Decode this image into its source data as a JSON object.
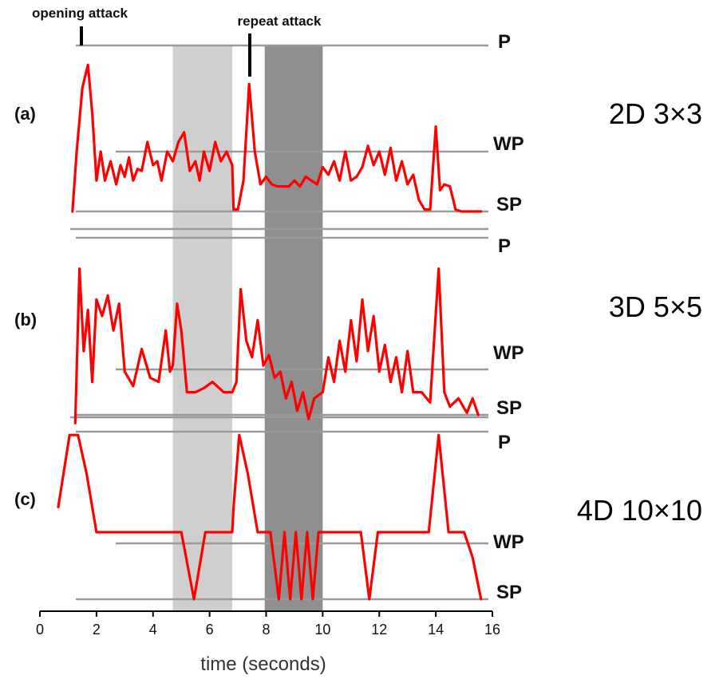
{
  "chart_data": {
    "type": "line",
    "xlabel": "time (seconds)",
    "xlim": [
      0,
      16
    ],
    "xticks": [
      0,
      2,
      4,
      6,
      8,
      10,
      12,
      14,
      16
    ],
    "annotations": [
      {
        "text": "opening attack",
        "x": 1.9
      },
      {
        "text": "repeat attack",
        "x": 7.6
      }
    ],
    "shaded_regions": [
      {
        "x0": 4.7,
        "x1": 6.8,
        "color": "#cfcfcf"
      },
      {
        "x0": 7.95,
        "x1": 10.0,
        "color": "#8f8f8f"
      }
    ],
    "level_labels": [
      "P",
      "WP",
      "SP"
    ],
    "line_color": "#ff0000",
    "panels": [
      {
        "label": "(a)",
        "side_label": "2D 3×3",
        "levels": {
          "P": 1.0,
          "WP": 0.5,
          "SP": 0.14
        },
        "x": [
          1.15,
          1.3,
          1.5,
          1.7,
          1.85,
          2.0,
          2.15,
          2.3,
          2.5,
          2.7,
          2.85,
          3.0,
          3.15,
          3.3,
          3.45,
          3.6,
          3.8,
          4.0,
          4.15,
          4.3,
          4.5,
          4.7,
          4.9,
          5.1,
          5.3,
          5.5,
          5.65,
          5.8,
          6.0,
          6.2,
          6.4,
          6.6,
          6.8,
          6.85,
          7.0,
          7.2,
          7.4,
          7.6,
          7.8,
          8.0,
          8.2,
          8.4,
          8.6,
          8.8,
          9.0,
          9.2,
          9.4,
          9.6,
          9.8,
          10.0,
          10.2,
          10.4,
          10.6,
          10.8,
          11.0,
          11.2,
          11.4,
          11.6,
          11.8,
          12.0,
          12.2,
          12.4,
          12.6,
          12.8,
          13.0,
          13.2,
          13.4,
          13.6,
          13.8,
          14.0,
          14.15,
          14.3,
          14.5,
          14.7,
          14.9,
          15.1,
          15.3,
          15.6
        ],
        "y": [
          0.14,
          0.45,
          0.78,
          0.9,
          0.65,
          0.3,
          0.45,
          0.3,
          0.4,
          0.28,
          0.38,
          0.32,
          0.42,
          0.3,
          0.36,
          0.35,
          0.5,
          0.38,
          0.4,
          0.3,
          0.45,
          0.4,
          0.5,
          0.55,
          0.35,
          0.4,
          0.3,
          0.45,
          0.35,
          0.5,
          0.4,
          0.45,
          0.38,
          0.15,
          0.15,
          0.3,
          0.8,
          0.45,
          0.28,
          0.32,
          0.28,
          0.27,
          0.27,
          0.27,
          0.3,
          0.27,
          0.32,
          0.3,
          0.28,
          0.37,
          0.33,
          0.4,
          0.3,
          0.45,
          0.3,
          0.32,
          0.37,
          0.48,
          0.38,
          0.45,
          0.33,
          0.47,
          0.3,
          0.4,
          0.28,
          0.33,
          0.2,
          0.15,
          0.15,
          0.58,
          0.25,
          0.28,
          0.27,
          0.15,
          0.14,
          0.14,
          0.14,
          0.14
        ]
      },
      {
        "label": "(b)",
        "side_label": "3D 5×5",
        "levels": {
          "P": 1.0,
          "WP": 0.5,
          "SP": 0.14
        },
        "x": [
          1.25,
          1.4,
          1.55,
          1.7,
          1.85,
          2.0,
          2.2,
          2.4,
          2.6,
          2.8,
          3.0,
          3.3,
          3.6,
          3.9,
          4.2,
          4.45,
          4.6,
          4.7,
          4.85,
          5.0,
          5.2,
          5.5,
          5.8,
          6.1,
          6.5,
          6.8,
          6.95,
          7.1,
          7.3,
          7.5,
          7.7,
          7.9,
          8.1,
          8.3,
          8.5,
          8.7,
          8.9,
          9.1,
          9.3,
          9.5,
          9.7,
          10.0,
          10.2,
          10.4,
          10.6,
          10.8,
          11.0,
          11.2,
          11.4,
          11.6,
          11.8,
          12.0,
          12.2,
          12.4,
          12.6,
          12.8,
          13.0,
          13.2,
          13.5,
          13.8,
          14.1,
          14.3,
          14.5,
          14.8,
          15.1,
          15.3,
          15.5
        ],
        "y": [
          0.1,
          0.85,
          0.45,
          0.65,
          0.3,
          0.7,
          0.62,
          0.72,
          0.55,
          0.68,
          0.35,
          0.28,
          0.46,
          0.32,
          0.3,
          0.55,
          0.35,
          0.38,
          0.68,
          0.55,
          0.25,
          0.25,
          0.27,
          0.3,
          0.25,
          0.25,
          0.3,
          0.75,
          0.5,
          0.42,
          0.6,
          0.38,
          0.43,
          0.32,
          0.35,
          0.22,
          0.3,
          0.16,
          0.25,
          0.12,
          0.22,
          0.25,
          0.42,
          0.3,
          0.5,
          0.35,
          0.6,
          0.4,
          0.7,
          0.45,
          0.62,
          0.35,
          0.48,
          0.3,
          0.42,
          0.25,
          0.45,
          0.25,
          0.25,
          0.2,
          0.85,
          0.25,
          0.18,
          0.22,
          0.15,
          0.22,
          0.14
        ]
      },
      {
        "label": "(c)",
        "side_label": "4D 10×10",
        "levels": {
          "P": 1.0,
          "WP": 0.4,
          "SP": 0.0
        },
        "x": [
          0.65,
          1.05,
          1.35,
          1.65,
          2.0,
          4.75,
          5.0,
          5.45,
          5.85,
          6.05,
          6.8,
          6.85,
          7.05,
          7.35,
          7.7,
          7.95,
          8.15,
          8.45,
          8.65,
          8.85,
          9.05,
          9.25,
          9.45,
          9.65,
          9.85,
          10.0,
          11.35,
          11.65,
          11.95,
          13.75,
          14.1,
          14.45,
          15.0,
          15.3,
          15.6
        ],
        "y": [
          0.55,
          0.98,
          0.98,
          0.75,
          0.4,
          0.4,
          0.4,
          0.0,
          0.4,
          0.4,
          0.4,
          0.55,
          0.98,
          0.75,
          0.4,
          0.4,
          0.4,
          0.0,
          0.4,
          0.0,
          0.4,
          0.0,
          0.4,
          0.0,
          0.4,
          0.4,
          0.4,
          0.0,
          0.4,
          0.4,
          0.98,
          0.4,
          0.4,
          0.25,
          0.0
        ]
      }
    ]
  }
}
